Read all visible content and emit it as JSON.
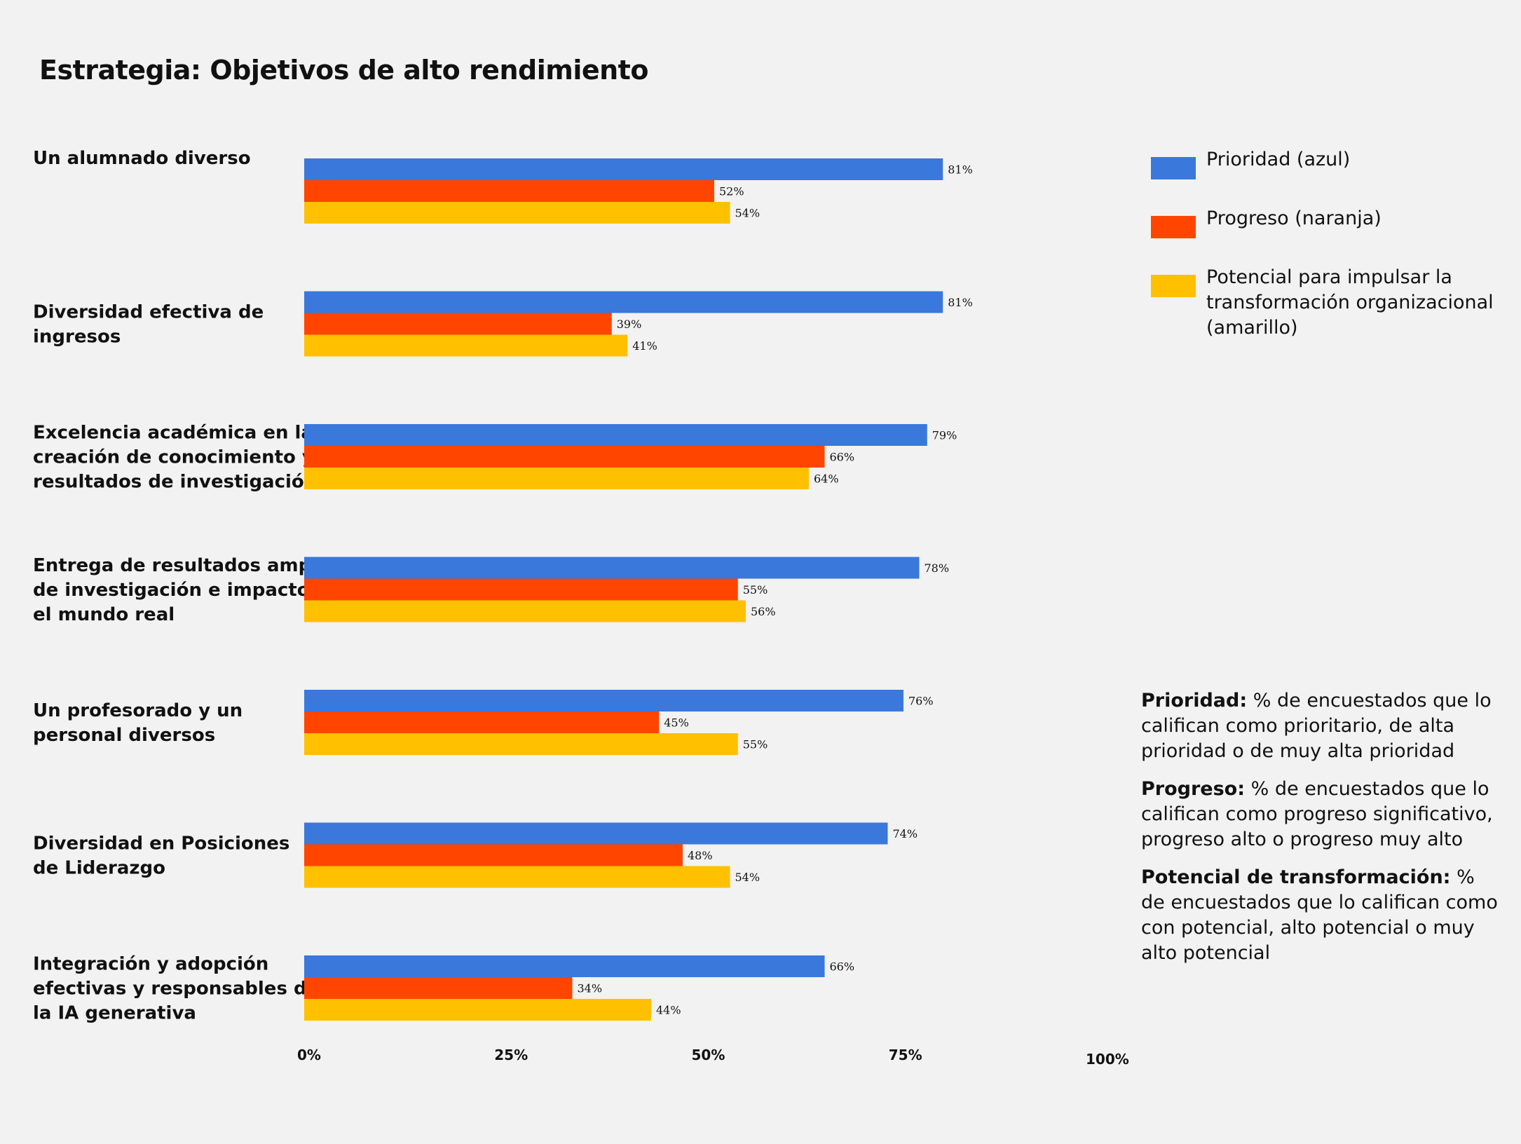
{
  "chart_data": {
    "type": "bar",
    "orientation": "horizontal",
    "title": "Estrategia: Objetivos de alto rendimiento",
    "categories": [
      "Un alumnado diverso",
      "Diversidad efectiva de ingresos",
      "Excelencia académica en la creación de conocimiento y resultados de investigación",
      "Entrega de resultados amplios de investigación e impacto en el mundo real",
      "Un profesorado y un personal diversos",
      "Diversidad en Posiciones de Liderazgo",
      "Integración y adopción efectivas y responsables de la IA generativa"
    ],
    "category_lines": [
      [
        "Un alumnado diverso"
      ],
      [
        "Diversidad efectiva de",
        "ingresos"
      ],
      [
        "Excelencia académica en la",
        "creación de conocimiento y",
        "resultados de investigación"
      ],
      [
        "Entrega de resultados amplios",
        "de investigación e impacto en",
        "el mundo real"
      ],
      [
        "Un profesorado y un",
        "personal diversos"
      ],
      [
        "Diversidad en Posiciones",
        "de Liderazgo"
      ],
      [
        "Integración y adopción",
        "efectivas y responsables de",
        "la IA generativa"
      ]
    ],
    "series": [
      {
        "name": "Prioridad (azul)",
        "color": "#3a78db",
        "values": [
          81,
          81,
          79,
          78,
          76,
          74,
          66
        ]
      },
      {
        "name": "Progreso (naranja)",
        "color": "#ff4500",
        "values": [
          52,
          39,
          66,
          55,
          45,
          48,
          34
        ]
      },
      {
        "name": "Potencial para impulsar la transformación organizacional (amarillo)",
        "color": "#ffc000",
        "values": [
          54,
          41,
          64,
          56,
          55,
          54,
          44
        ]
      }
    ],
    "value_suffix": "%",
    "xlim": [
      0,
      100
    ],
    "xticks": [
      0,
      25,
      50,
      75,
      100
    ],
    "xtick_labels": [
      "0%",
      "25%",
      "50%",
      "75%",
      "100%"
    ],
    "xlabel": "",
    "ylabel": "",
    "grid": false,
    "legend_position": "top-right"
  },
  "notes": [
    {
      "term": "Prioridad:",
      "text": "% de encuestados que lo califican como prioritario, de alta prioridad o de muy alta prioridad"
    },
    {
      "term": "Progreso:",
      "text": "% de encuestados que lo califican como progreso significativo, progreso alto o progreso muy alto"
    },
    {
      "term": "Potencial de transformación:",
      "text": "% de encuestados que lo califican como con potencial, alto potencial o muy alto potencial"
    }
  ]
}
